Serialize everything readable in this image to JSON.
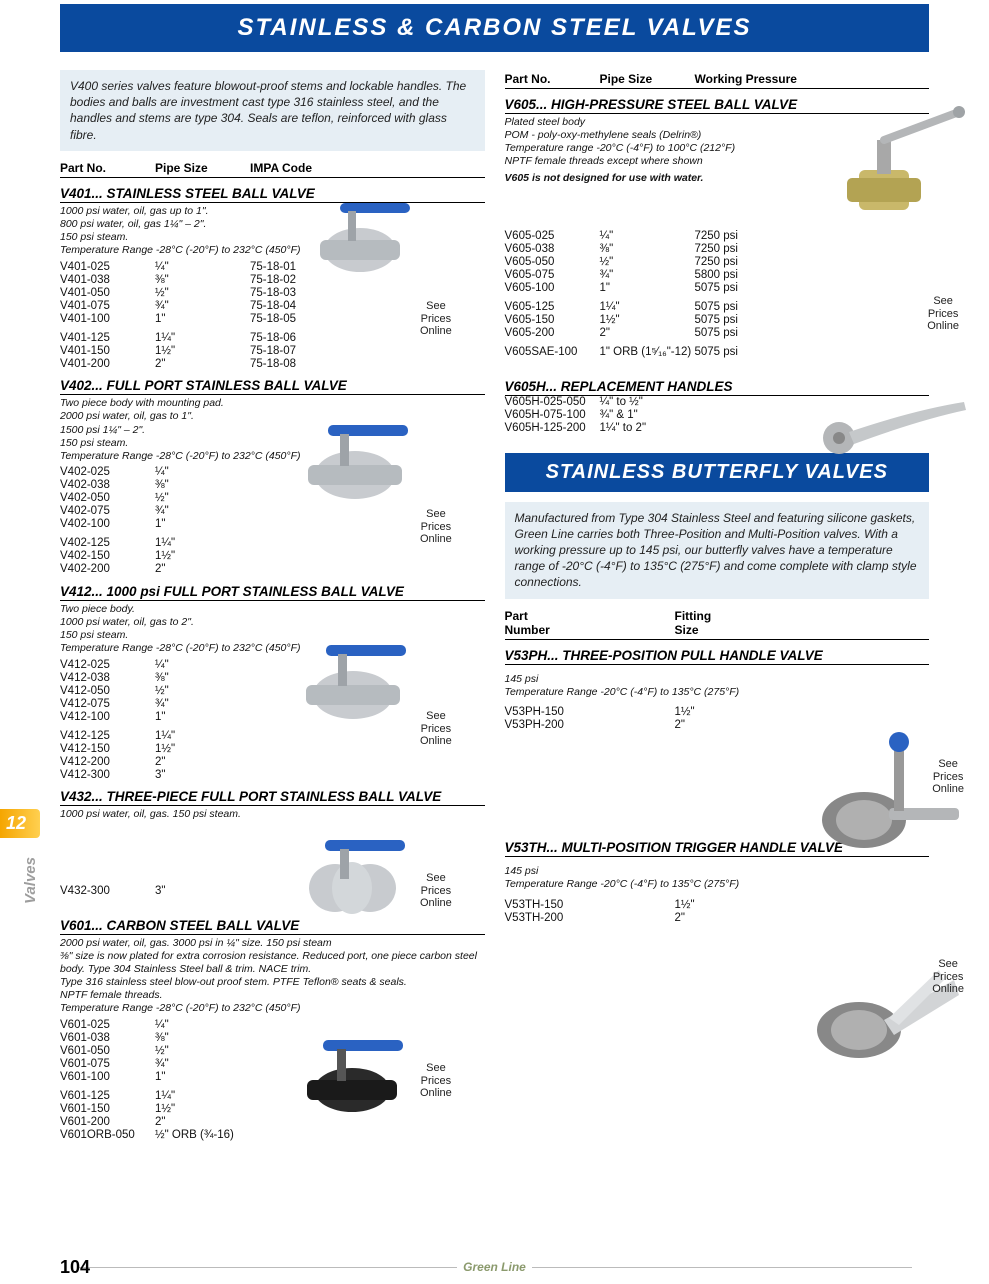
{
  "header_main": "STAINLESS & CARBON STEEL VALVES",
  "header_sub": "STAINLESS BUTTERFLY VALVES",
  "intro_left": "V400 series valves feature blowout-proof stems and lockable handles. The bodies and balls are investment cast type 316 stainless steel, and the handles and stems are type 304. Seals are teflon, reinforced with glass fibre.",
  "intro_right": "Manufactured from Type 304 Stainless Steel and featuring silicone gaskets, Green Line carries both Three-Position and Multi-Position valves. With a working pressure up to 145 psi, our butterfly valves have a temperature range of -20°C (-4°F) to 135°C (275°F) and come complete with clamp style connections.",
  "col_headers_left": {
    "part": "Part No.",
    "pipe": "Pipe Size",
    "impa": "IMPA Code"
  },
  "col_headers_right": {
    "part": "Part No.",
    "pipe": "Pipe Size",
    "pressure": "Working Pressure"
  },
  "col_headers_butterfly": {
    "part1": "Part",
    "part2": "Number",
    "size1": "Fitting",
    "size2": "Size"
  },
  "price_label": "See\nPrices\nOnline",
  "side_tab": "12",
  "side_label": "Valves",
  "page_num": "104",
  "footer_brand": "Green Line",
  "sections": {
    "v401": {
      "title": "V401... STAINLESS STEEL BALL VALVE",
      "notes": [
        "1000 psi water, oil, gas up to 1\".",
        "800 psi water, oil, gas 1¼\" – 2\".",
        "150 psi steam.",
        "Temperature Range -28°C (-20°F) to 232°C (450°F)"
      ],
      "rows": [
        {
          "p": "V401-025",
          "s": "¼\"",
          "i": "75-18-01"
        },
        {
          "p": "V401-038",
          "s": "⅜\"",
          "i": "75-18-02"
        },
        {
          "p": "V401-050",
          "s": "½\"",
          "i": "75-18-03"
        },
        {
          "p": "V401-075",
          "s": "¾\"",
          "i": "75-18-04"
        },
        {
          "p": "V401-100",
          "s": "1\"",
          "i": "75-18-05"
        }
      ],
      "rows2": [
        {
          "p": "V401-125",
          "s": "1¼\"",
          "i": "75-18-06"
        },
        {
          "p": "V401-150",
          "s": "1½\"",
          "i": "75-18-07"
        },
        {
          "p": "V401-200",
          "s": "2\"",
          "i": "75-18-08"
        }
      ]
    },
    "v402": {
      "title": "V402... FULL PORT STAINLESS BALL VALVE",
      "notes": [
        "Two piece body with mounting pad.",
        "2000 psi water, oil, gas to 1\".",
        "1500 psi 1¼\" – 2\".",
        "150 psi steam.",
        "Temperature Range -28°C (-20°F) to 232°C (450°F)"
      ],
      "rows": [
        {
          "p": "V402-025",
          "s": "¼\""
        },
        {
          "p": "V402-038",
          "s": "⅜\""
        },
        {
          "p": "V402-050",
          "s": "½\""
        },
        {
          "p": "V402-075",
          "s": "¾\""
        },
        {
          "p": "V402-100",
          "s": "1\""
        }
      ],
      "rows2": [
        {
          "p": "V402-125",
          "s": "1¼\""
        },
        {
          "p": "V402-150",
          "s": "1½\""
        },
        {
          "p": "V402-200",
          "s": "2\""
        }
      ]
    },
    "v412": {
      "title": "V412... 1000 psi FULL PORT STAINLESS BALL VALVE",
      "notes": [
        "Two piece body.",
        "1000 psi water, oil, gas to 2\".",
        "150 psi steam.",
        "Temperature Range -28°C (-20°F) to 232°C (450°F)"
      ],
      "rows": [
        {
          "p": "V412-025",
          "s": "¼\""
        },
        {
          "p": "V412-038",
          "s": "⅜\""
        },
        {
          "p": "V412-050",
          "s": "½\""
        },
        {
          "p": "V412-075",
          "s": "¾\""
        },
        {
          "p": "V412-100",
          "s": "1\""
        }
      ],
      "rows2": [
        {
          "p": "V412-125",
          "s": "1¼\""
        },
        {
          "p": "V412-150",
          "s": "1½\""
        },
        {
          "p": "V412-200",
          "s": "2\""
        },
        {
          "p": "V412-300",
          "s": "3\""
        }
      ]
    },
    "v432": {
      "title": "V432... THREE-PIECE FULL PORT STAINLESS BALL VALVE",
      "notes": [
        "1000 psi water, oil, gas. 150 psi steam."
      ],
      "rows": [
        {
          "p": "V432-300",
          "s": "3\""
        }
      ]
    },
    "v601": {
      "title": "V601... CARBON STEEL BALL VALVE",
      "notes": [
        "2000 psi water, oil, gas. 3000 psi in ¼\" size. 150 psi steam",
        "⅜\" size is now plated for extra corrosion resistance. Reduced port, one piece carbon steel body. Type 304 Stainless Steel ball & trim. NACE trim.",
        "Type 316 stainless steel blow-out proof stem. PTFE Teflon® seats & seals.",
        "NPTF female threads.",
        "Temperature Range -28°C (-20°F) to 232°C (450°F)"
      ],
      "rows": [
        {
          "p": "V601-025",
          "s": "¼\""
        },
        {
          "p": "V601-038",
          "s": "⅜\""
        },
        {
          "p": "V601-050",
          "s": "½\""
        },
        {
          "p": "V601-075",
          "s": "¾\""
        },
        {
          "p": "V601-100",
          "s": "1\""
        }
      ],
      "rows2": [
        {
          "p": "V601-125",
          "s": "1¼\""
        },
        {
          "p": "V601-150",
          "s": "1½\""
        },
        {
          "p": "V601-200",
          "s": "2\""
        },
        {
          "p": "V601ORB-050",
          "s": "½\" ORB (¾-16)"
        }
      ]
    },
    "v605": {
      "title": "V605... HIGH-PRESSURE STEEL BALL VALVE",
      "notes": [
        "Plated steel body",
        "POM - poly-oxy-methylene seals (Delrin®)",
        "Temperature range -20°C (-4°F) to 100°C (212°F)",
        "NPTF female threads except where shown"
      ],
      "warn": "V605 is not designed for use with water.",
      "rows": [
        {
          "p": "V605-025",
          "s": "¼\"",
          "w": "7250 psi"
        },
        {
          "p": "V605-038",
          "s": "⅜\"",
          "w": "7250 psi"
        },
        {
          "p": "V605-050",
          "s": "½\"",
          "w": "7250 psi"
        },
        {
          "p": "V605-075",
          "s": "¾\"",
          "w": "5800 psi"
        },
        {
          "p": "V605-100",
          "s": "1\"",
          "w": "5075 psi"
        }
      ],
      "rows2": [
        {
          "p": "V605-125",
          "s": "1¼\"",
          "w": "5075 psi"
        },
        {
          "p": "V605-150",
          "s": "1½\"",
          "w": "5075 psi"
        },
        {
          "p": "V605-200",
          "s": "2\"",
          "w": "5075 psi"
        }
      ],
      "rows3": [
        {
          "p": "V605SAE-100",
          "s": "1\" ORB (1⁵⁄₁₆\"-12)",
          "w": "5075 psi"
        }
      ]
    },
    "v605h": {
      "title": "V605H... REPLACEMENT HANDLES",
      "rows": [
        {
          "p": "V605H-025-050",
          "s": "¼\" to ½\""
        },
        {
          "p": "V605H-075-100",
          "s": "¾\" & 1\""
        },
        {
          "p": "V605H-125-200",
          "s": "1¼\" to 2\""
        }
      ]
    },
    "v53ph": {
      "title": "V53PH... THREE-POSITION PULL HANDLE VALVE",
      "notes": [
        "145 psi",
        "Temperature Range -20°C (-4°F) to 135°C (275°F)"
      ],
      "rows": [
        {
          "p": "V53PH-150",
          "s": "1½\""
        },
        {
          "p": "V53PH-200",
          "s": "2\""
        }
      ]
    },
    "v53th": {
      "title": "V53TH... MULTI-POSITION TRIGGER HANDLE VALVE",
      "notes": [
        "145 psi",
        "Temperature Range -20°C (-4°F) to 135°C (275°F)"
      ],
      "rows": [
        {
          "p": "V53TH-150",
          "s": "1½\""
        },
        {
          "p": "V53TH-200",
          "s": "2\""
        }
      ]
    }
  },
  "colors": {
    "blue_header": "#0a4a9e",
    "accent_orange": "#f5a500",
    "intro_bg": "#e6eef4",
    "footer_green": "#8b9a6d"
  }
}
